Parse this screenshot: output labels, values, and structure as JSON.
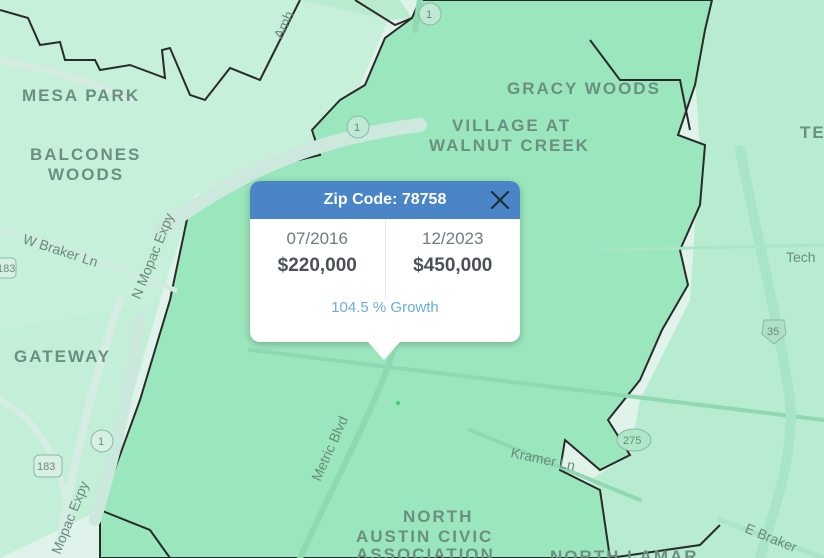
{
  "map": {
    "neighborhoods": [
      "MESA PARK",
      "BALCONES",
      "WOODS",
      "GATEWAY",
      "GRACY WOODS",
      "VILLAGE AT",
      "WALNUT CREEK",
      "NORTH",
      "AUSTIN CIVIC",
      "ASSOCIATION",
      "NORTH LAMAR",
      "TE"
    ],
    "roads": [
      "W Braker Ln",
      "N Mopac Expy",
      "Metric Blvd",
      "Kramer Ln",
      "E Braker",
      "Tech",
      "Mopac Expy",
      "Amh"
    ],
    "shields": [
      "1",
      "1",
      "1",
      "183",
      "183",
      "275",
      "35"
    ]
  },
  "popup": {
    "title": "Zip Code: 78758",
    "left": {
      "date": "07/2016",
      "price": "$220,000"
    },
    "right": {
      "date": "12/2023",
      "price": "$450,000"
    },
    "growth": "104.5 % Growth"
  },
  "colors": {
    "zip_fill": "#9be7bd",
    "area_light": "#dff3ea",
    "area_mid": "#bfeed5",
    "boundary": "#2a2a2a",
    "header": "#4a86c7"
  }
}
